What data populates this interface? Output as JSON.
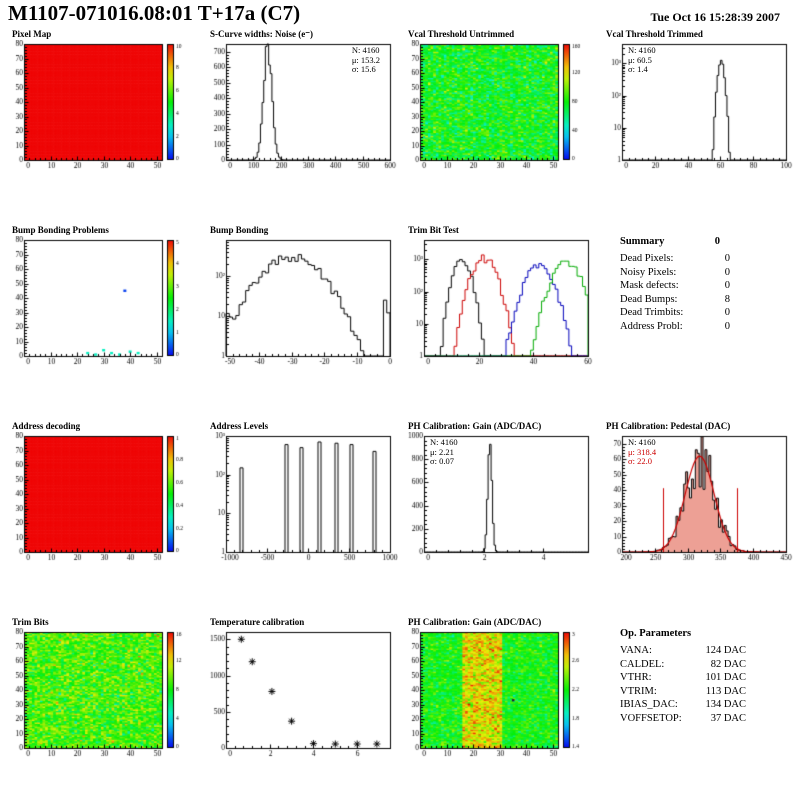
{
  "header": {
    "title": "M1107-071016.08:01 T+17a (C7)",
    "datetime": "Tue Oct 16 15:28:39 2007"
  },
  "summary": {
    "title": "Summary",
    "total": "0",
    "rows": [
      [
        "Dead Pixels:",
        "0"
      ],
      [
        "Noisy Pixels:",
        "0"
      ],
      [
        "Mask defects:",
        "0"
      ],
      [
        "Dead Bumps:",
        "8"
      ],
      [
        "Dead Trimbits:",
        "0"
      ],
      [
        "Address Probl:",
        "0"
      ]
    ]
  },
  "op_parameters": {
    "title": "Op. Parameters",
    "rows": [
      [
        "VANA:",
        "124 DAC"
      ],
      [
        "CALDEL:",
        "82 DAC"
      ],
      [
        "VTHR:",
        "101 DAC"
      ],
      [
        "VTRIM:",
        "113 DAC"
      ],
      [
        "IBIAS_DAC:",
        "134 DAC"
      ],
      [
        "VOFFSETOP:",
        "37 DAC"
      ]
    ]
  },
  "chart_data": [
    {
      "id": "pixel-map",
      "type": "heatmap",
      "title": "Pixel Map",
      "x_range": [
        0,
        52
      ],
      "y_range": [
        0,
        80
      ],
      "x_ticks": [
        0,
        10,
        20,
        30,
        40,
        50
      ],
      "y_ticks": [
        0,
        10,
        20,
        30,
        40,
        50,
        60,
        70,
        80
      ],
      "nx": 52,
      "ny": 80,
      "pattern": "uniform",
      "z_value": 10,
      "z_range": [
        0,
        10
      ],
      "z_ticks": [
        0,
        2,
        4,
        6,
        8,
        10
      ]
    },
    {
      "id": "scurve-noise",
      "type": "hist",
      "title": "S-Curve widths: Noise (e⁻)",
      "x_range": [
        0,
        600
      ],
      "x_ticks": [
        0,
        100,
        200,
        300,
        400,
        500,
        600
      ],
      "y_range": [
        0,
        750
      ],
      "y_ticks": [
        0,
        100,
        200,
        300,
        400,
        500,
        600,
        700
      ],
      "bins": 100,
      "gauss": [
        {
          "mu": 153.2,
          "sigma": 15.6,
          "peak": 700
        }
      ],
      "noise": 0.15,
      "stats": [
        "N: 4160",
        "μ: 153.2",
        "σ: 15.6"
      ],
      "stats_pos": "right"
    },
    {
      "id": "vcal-untrimmed",
      "type": "heatmap",
      "title": "Vcal Threshold Untrimmed",
      "x_range": [
        0,
        52
      ],
      "y_range": [
        0,
        80
      ],
      "x_ticks": [
        0,
        10,
        20,
        30,
        40,
        50
      ],
      "y_ticks": [
        0,
        10,
        20,
        30,
        40,
        50,
        60,
        70,
        80
      ],
      "nx": 52,
      "ny": 80,
      "pattern": "noise",
      "mean": 78,
      "sigma": 15,
      "z_range": [
        0,
        160
      ],
      "z_ticks": [
        0,
        40,
        80,
        120,
        160
      ]
    },
    {
      "id": "vcal-trimmed",
      "type": "hist",
      "title": "Vcal Threshold Trimmed",
      "x_range": [
        0,
        100
      ],
      "x_ticks": [
        0,
        20,
        40,
        60,
        80,
        100
      ],
      "y_log": true,
      "y_range": [
        1,
        4000
      ],
      "bins": 100,
      "gauss": [
        {
          "mu": 60.5,
          "sigma": 1.4,
          "peak": 1200
        }
      ],
      "noise": 0.2,
      "stats": [
        "N: 4160",
        "μ: 60.5",
        "σ:  1.4"
      ],
      "stats_pos": "left"
    },
    {
      "id": "bump-problems",
      "type": "heatmap-scatter",
      "title": "Bump Bonding Problems",
      "x_range": [
        0,
        52
      ],
      "y_range": [
        0,
        80
      ],
      "x_ticks": [
        0,
        10,
        20,
        30,
        40,
        50
      ],
      "y_ticks": [
        0,
        10,
        20,
        30,
        40,
        50,
        60,
        70,
        80
      ],
      "z_range": [
        0,
        5
      ],
      "z_ticks": [
        0,
        1,
        2,
        3,
        4,
        5
      ],
      "points": [
        [
          24,
          2,
          1.5
        ],
        [
          27,
          1,
          1.5
        ],
        [
          30,
          4,
          1.5
        ],
        [
          33,
          2,
          1.5
        ],
        [
          36,
          1,
          1.5
        ],
        [
          40,
          3,
          1.5
        ],
        [
          43,
          2,
          1.5
        ],
        [
          38,
          45,
          0.3
        ]
      ]
    },
    {
      "id": "bump-bonding",
      "type": "hist",
      "title": "Bump Bonding",
      "x_range": [
        -50,
        0
      ],
      "x_ticks": [
        -50,
        -40,
        -30,
        -20,
        -10,
        0
      ],
      "y_log": true,
      "y_range": [
        1,
        800
      ],
      "bins": 50,
      "gauss": [
        {
          "mu": -30,
          "sigma": 6.5,
          "peak": 300
        }
      ],
      "extra_bins": [
        [
          -50,
          9
        ],
        [
          -49,
          5
        ],
        [
          -13,
          3
        ],
        [
          -2,
          25
        ],
        [
          -1,
          12
        ]
      ],
      "noise": 0.25
    },
    {
      "id": "trim-bit-test",
      "type": "hist",
      "title": "Trim Bit Test",
      "x_range": [
        0,
        60
      ],
      "x_ticks": [
        0,
        20,
        40,
        60
      ],
      "y_log": true,
      "y_range": [
        1,
        4000
      ],
      "bins": 60,
      "noise": 0.3,
      "series": [
        {
          "color": "#000000",
          "gauss": {
            "mu": 14,
            "sigma": 2.2,
            "peak": 900
          }
        },
        {
          "color": "#cc0000",
          "gauss": {
            "mu": 22,
            "sigma": 3,
            "peak": 1100
          }
        },
        {
          "color": "#0000bb",
          "gauss": {
            "mu": 42,
            "sigma": 3.5,
            "peak": 600
          }
        },
        {
          "color": "#00aa00",
          "gauss": {
            "mu": 52,
            "sigma": 3.5,
            "peak": 800
          }
        }
      ]
    },
    {
      "id": "address-decoding",
      "type": "heatmap",
      "title": "Address decoding",
      "x_range": [
        0,
        52
      ],
      "y_range": [
        0,
        80
      ],
      "x_ticks": [
        0,
        10,
        20,
        30,
        40,
        50
      ],
      "y_ticks": [
        0,
        10,
        20,
        30,
        40,
        50,
        60,
        70,
        80
      ],
      "nx": 52,
      "ny": 80,
      "pattern": "uniform",
      "z_value": 1,
      "z_range": [
        0,
        1
      ],
      "z_ticks": [
        0,
        0.2,
        0.4,
        0.6,
        0.8,
        1
      ]
    },
    {
      "id": "address-levels",
      "type": "spikes",
      "title": "Address Levels",
      "x_range": [
        -1000,
        1000
      ],
      "x_ticks": [
        -1000,
        -500,
        0,
        500,
        1000
      ],
      "y_log": true,
      "y_range": [
        1,
        1000
      ],
      "spikes": [
        [
          -820,
          150
        ],
        [
          -270,
          600
        ],
        [
          -80,
          500
        ],
        [
          140,
          700
        ],
        [
          340,
          650
        ],
        [
          520,
          600
        ],
        [
          810,
          400
        ]
      ]
    },
    {
      "id": "ph-gain-hist",
      "type": "hist",
      "title": "PH Calibration: Gain (ADC/DAC)",
      "x_range": [
        0,
        5.5
      ],
      "x_ticks": [
        0,
        2,
        4
      ],
      "y_range": [
        0,
        1000
      ],
      "y_ticks": [
        0,
        200,
        400,
        600,
        800,
        1000
      ],
      "bins": 110,
      "gauss": [
        {
          "mu": 2.21,
          "sigma": 0.07,
          "peak": 950
        }
      ],
      "stats": [
        "N: 4160",
        "μ: 2.21",
        "σ: 0.07"
      ],
      "stats_pos": "left"
    },
    {
      "id": "ph-pedestal",
      "type": "hist",
      "title": "PH Calibration: Pedestal (DAC)",
      "x_range": [
        200,
        450
      ],
      "x_ticks": [
        200,
        250,
        300,
        350,
        400,
        450
      ],
      "y_range": [
        0,
        75
      ],
      "y_ticks": [
        0,
        10,
        20,
        30,
        40,
        50,
        60,
        70
      ],
      "bins": 85,
      "gauss": [
        {
          "mu": 318.4,
          "sigma": 22,
          "peak": 62
        }
      ],
      "noise": 0.35,
      "fill": "rgba(215,45,20,0.45)",
      "fit": {
        "mu": 318.4,
        "sigma": 22,
        "peak": 62,
        "color": "#cc0000"
      },
      "vlines": [
        262,
        375
      ],
      "stats": [
        "N: 4160",
        "μ: 318.4",
        "σ: 22.0"
      ],
      "stats_pos": "left",
      "stats_colors": [
        "#000000",
        "#cc0000",
        "#cc0000"
      ]
    },
    {
      "id": "trim-bits",
      "type": "heatmap",
      "title": "Trim Bits",
      "x_range": [
        0,
        52
      ],
      "y_range": [
        0,
        80
      ],
      "x_ticks": [
        0,
        10,
        20,
        30,
        40,
        50
      ],
      "y_ticks": [
        0,
        10,
        20,
        30,
        40,
        50,
        60,
        70,
        80
      ],
      "nx": 52,
      "ny": 80,
      "pattern": "noise",
      "mean": 9,
      "sigma": 1.6,
      "z_range": [
        0,
        16
      ],
      "z_ticks": [
        0,
        4,
        8,
        12,
        16
      ]
    },
    {
      "id": "temp-calib",
      "type": "scatter",
      "title": "Temperature calibration",
      "x_range": [
        0,
        7.5
      ],
      "x_ticks": [
        0,
        2,
        4,
        6
      ],
      "y_range": [
        0,
        1600
      ],
      "y_ticks": [
        0,
        500,
        1000,
        1500
      ],
      "points": [
        [
          0.7,
          1500
        ],
        [
          1.2,
          1190
        ],
        [
          2.1,
          780
        ],
        [
          3.0,
          370
        ],
        [
          4.0,
          60
        ],
        [
          5.0,
          55
        ],
        [
          6.0,
          55
        ],
        [
          6.9,
          55
        ]
      ]
    },
    {
      "id": "ph-gain-2d",
      "type": "heatmap",
      "title": "PH Calibration: Gain (ADC/DAC)",
      "x_range": [
        0,
        52
      ],
      "y_range": [
        0,
        80
      ],
      "x_ticks": [
        0,
        10,
        20,
        30,
        40,
        50
      ],
      "y_ticks": [
        0,
        10,
        20,
        30,
        40,
        50,
        60,
        70,
        80
      ],
      "nx": 52,
      "ny": 80,
      "pattern": "noise",
      "mean": 2.2,
      "sigma": 0.12,
      "band": {
        "x0": 16,
        "x1": 30,
        "mean": 2.6,
        "sigma": 0.15
      },
      "dark_points": [
        [
          35,
          33
        ]
      ],
      "z_range": [
        1.4,
        3.0
      ],
      "z_ticks": [
        1.4,
        1.8,
        2.2,
        2.6,
        3
      ]
    }
  ]
}
